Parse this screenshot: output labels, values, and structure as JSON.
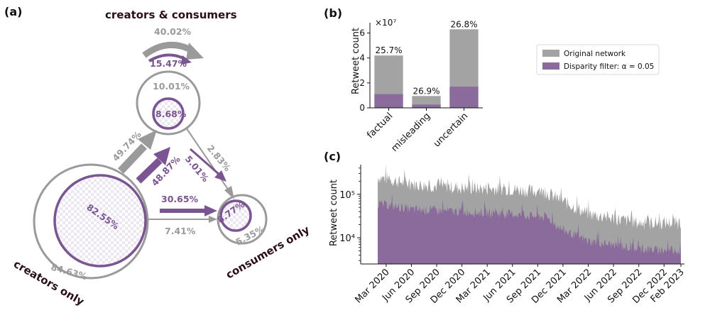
{
  "panel_a": {
    "label": "(a)",
    "group_labels": {
      "top": "creators & consumers",
      "bottom_left": "creators only",
      "bottom_right": "consumers only"
    },
    "values": {
      "top_loop_original": "40.02%",
      "top_loop_filtered": "15.47%",
      "top_node_original": "10.01%",
      "top_node_filtered": "8.68%",
      "left_node_original": "84.63%",
      "left_node_filtered": "82.55%",
      "right_node_original": "5.35%",
      "right_node_filtered": "8.77%",
      "left_to_top_original": "49.74%",
      "left_to_top_filtered": "48.87%",
      "top_to_right_original": "2.83%",
      "top_to_right_filtered": "5.01%",
      "left_to_right_original": "7.41%",
      "left_to_right_filtered": "30.65%"
    },
    "colors": {
      "original": "#9a9a9a",
      "filtered": "#7b5592"
    }
  },
  "chart_data": [
    {
      "panel": "(b)",
      "type": "bar",
      "categories": [
        "factual",
        "misleading",
        "uncertain"
      ],
      "series": [
        {
          "name": "Original network",
          "values": [
            4.2,
            0.95,
            6.3
          ],
          "color": "#a3a3a3"
        },
        {
          "name": "Disparity filter: α = 0.05",
          "values": [
            1.1,
            0.26,
            1.7
          ],
          "color": "#8a6b9c"
        }
      ],
      "bar_labels": [
        "25.7%",
        "26.9%",
        "26.8%"
      ],
      "ylabel": "Retweet count",
      "multiplier": "×10⁷",
      "ylim": [
        0,
        6.6
      ],
      "yticks": [
        "0",
        "2",
        "4",
        "6"
      ],
      "legend_position": "right"
    },
    {
      "panel": "(c)",
      "type": "area",
      "ylabel": "Retweet count",
      "y_scale": "log",
      "yticks": [
        "10⁴",
        "10⁵"
      ],
      "x_tick_labels": [
        "Mar 2020",
        "Jun 2020",
        "Sep 2020",
        "Dec 2020",
        "Mar 2021",
        "Jun 2021",
        "Sep 2021",
        "Dec 2021",
        "Mar 2022",
        "Jun 2022",
        "Sep 2022",
        "Dec 2022",
        "Feb 2023"
      ],
      "x_range": [
        "2020-02",
        "2023-02"
      ],
      "series": [
        {
          "name": "Original network",
          "color": "#a3a3a3",
          "trend": [
            {
              "month": "2020-02",
              "value": 250000
            },
            {
              "month": "2020-06",
              "value": 170000
            },
            {
              "month": "2020-12",
              "value": 140000
            },
            {
              "month": "2021-06",
              "value": 130000
            },
            {
              "month": "2021-10",
              "value": 110000
            },
            {
              "month": "2021-12",
              "value": 70000
            },
            {
              "month": "2022-03",
              "value": 35000
            },
            {
              "month": "2022-09",
              "value": 22000
            },
            {
              "month": "2023-02",
              "value": 22000
            }
          ]
        },
        {
          "name": "Disparity filter: α = 0.05",
          "color": "#8a6b9c",
          "trend": [
            {
              "month": "2020-02",
              "value": 60000
            },
            {
              "month": "2020-06",
              "value": 45000
            },
            {
              "month": "2020-12",
              "value": 40000
            },
            {
              "month": "2021-06",
              "value": 35000
            },
            {
              "month": "2021-10",
              "value": 30000
            },
            {
              "month": "2021-12",
              "value": 15000
            },
            {
              "month": "2022-03",
              "value": 8500
            },
            {
              "month": "2022-09",
              "value": 5500
            },
            {
              "month": "2023-02",
              "value": 5000
            }
          ]
        }
      ]
    }
  ]
}
